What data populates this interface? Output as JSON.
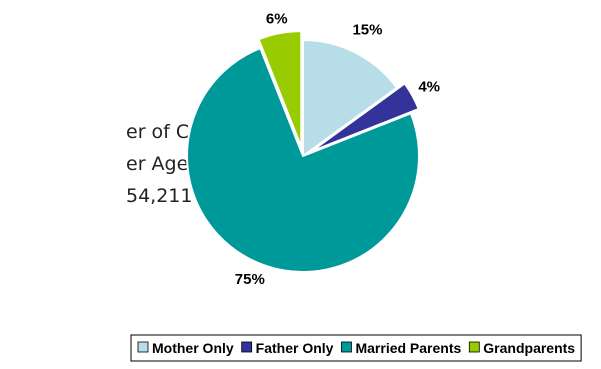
{
  "note": {
    "lines": [
      "er of Children",
      "er Age 18:",
      "54,211"
    ]
  },
  "chart_data": {
    "type": "pie",
    "title": "",
    "slices": [
      {
        "label": "Mother Only",
        "value": 15,
        "display": "15%",
        "color": "#b7dde8"
      },
      {
        "label": "Father Only",
        "value": 4,
        "display": "4%",
        "color": "#33339a"
      },
      {
        "label": "Married Parents",
        "value": 75,
        "display": "75%",
        "color": "#009999"
      },
      {
        "label": "Grandparents",
        "value": 6,
        "display": "6%",
        "color": "#99cc00"
      }
    ],
    "exploded": [
      "Father Only",
      "Grandparents"
    ],
    "legend_position": "bottom",
    "start": "top",
    "direction": "clockwise"
  }
}
